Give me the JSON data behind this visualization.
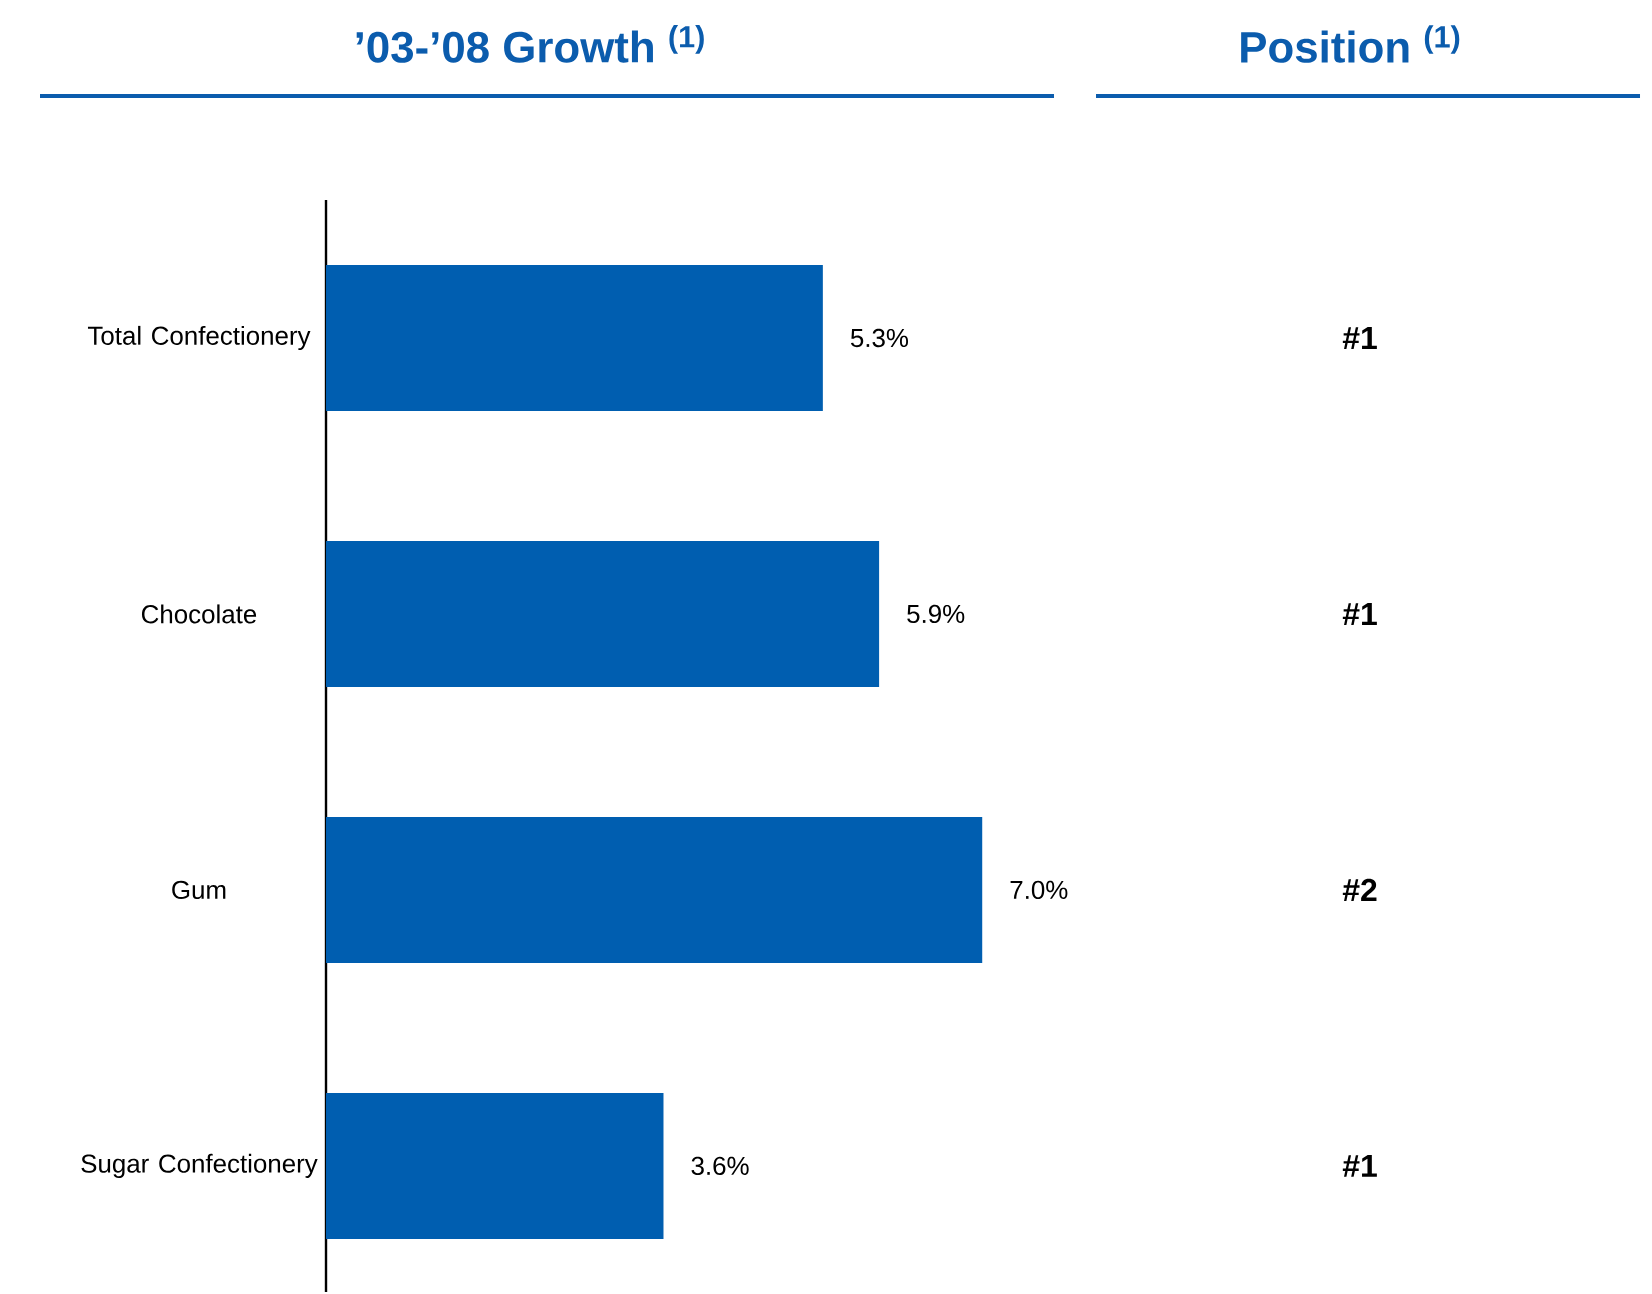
{
  "chart_data": {
    "type": "bar",
    "orientation": "horizontal",
    "title": "’03-’08 Growth $^{(1)}$",
    "categories": [
      "Total Confectionery",
      "Chocolate",
      "Gum",
      "Sugar Confectionery"
    ],
    "values": [
      5.3,
      5.9,
      7.0,
      3.6
    ],
    "value_labels": [
      "5.3%",
      "5.9%",
      "7.0%",
      "3.6%"
    ],
    "color": "#005eb0",
    "annotations": [
      "Position $^{(1)}$",
      "#1",
      "#1",
      "#2",
      "#1"
    ]
  }
}
